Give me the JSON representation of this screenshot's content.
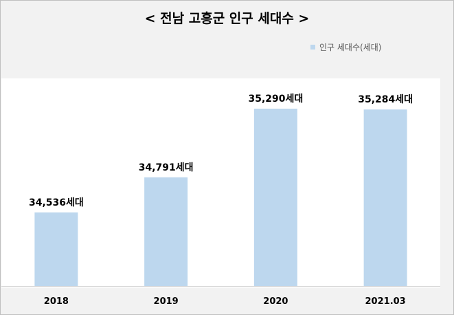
{
  "chart_data": {
    "type": "bar",
    "title": "< 전남 고흥군 인구 세대수 >",
    "categories": [
      "2018",
      "2019",
      "2020",
      "2021.03"
    ],
    "series": [
      {
        "name": "인구 세대수(세대)",
        "values": [
          34536,
          34791,
          35290,
          35284
        ],
        "labels": [
          "34,536세대",
          "34,791세대",
          "35,290세대",
          "35,284세대"
        ]
      }
    ],
    "colors": {
      "bar": "#bdd7ee",
      "plot_background": "#ffffff",
      "frame_background": "#f2f2f2"
    },
    "legend": "top-right",
    "grid": false,
    "ylim": [
      34000,
      35400
    ]
  }
}
